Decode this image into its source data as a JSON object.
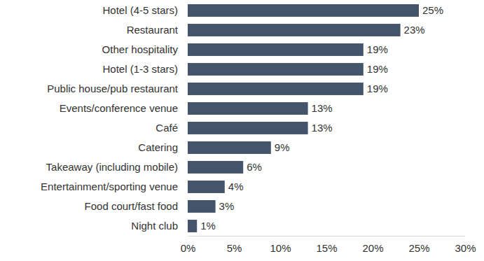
{
  "chart_data": {
    "type": "bar",
    "orientation": "horizontal",
    "categories": [
      "Hotel (4-5 stars)",
      "Restaurant",
      "Other hospitality",
      "Hotel (1-3 stars)",
      "Public house/pub restaurant",
      "Events/conference venue",
      "Café",
      "Catering",
      "Takeaway (including mobile)",
      "Entertainment/sporting venue",
      "Food court/fast food",
      "Night club"
    ],
    "values": [
      25,
      23,
      19,
      19,
      19,
      13,
      13,
      9,
      6,
      4,
      3,
      1
    ],
    "value_labels": [
      "25%",
      "23%",
      "19%",
      "19%",
      "19%",
      "13%",
      "13%",
      "9%",
      "6%",
      "4%",
      "3%",
      "1%"
    ],
    "color": "#44546a",
    "xlim": [
      0,
      30
    ],
    "xticks": [
      {
        "value": 0,
        "label": "0%"
      },
      {
        "value": 5,
        "label": "5%"
      },
      {
        "value": 10,
        "label": "10%"
      },
      {
        "value": 15,
        "label": "15%"
      },
      {
        "value": 20,
        "label": "20%"
      },
      {
        "value": 25,
        "label": "25%"
      },
      {
        "value": 30,
        "label": "30%"
      }
    ],
    "grid": false,
    "data_labels": true
  }
}
